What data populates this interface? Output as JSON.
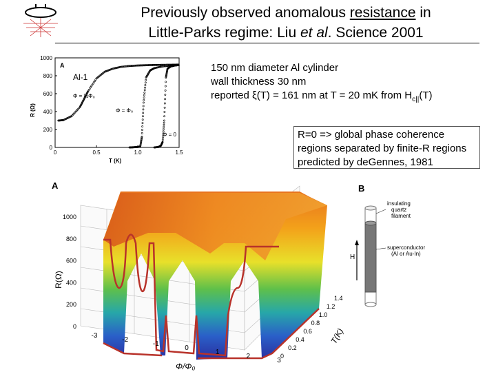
{
  "header": {
    "title_line1_pre": "Previously observed anomalous ",
    "title_line1_underlined": "resistance",
    "title_line1_post": " in",
    "title_line2_pre": "Little-Parks regime: Liu ",
    "title_line2_italic": "et al",
    "title_line2_post": ". Science 2001"
  },
  "notes": {
    "line1": "150 nm diameter Al cylinder",
    "line2": "wall thickness 30 nm",
    "line3_pre": "reported ξ(T) = 161 nm at T = 20 mK from H",
    "line3_sub": "c||",
    "line3_post": "(T)"
  },
  "callout": {
    "line1": "R=0 => global phase coherence",
    "line2": "regions separated by finite-R regions",
    "line3": "predicted by deGennes, 1981"
  },
  "chart_data": [
    {
      "type": "scatter",
      "panel_label": "A",
      "sample_label": "Al-1",
      "xlabel": "T (K)",
      "ylabel": "R (Ω)",
      "xlim": [
        0,
        1.5
      ],
      "ylim": [
        0,
        1000
      ],
      "x_ticks": [
        "0",
        "0.5",
        "1.0",
        "1.5"
      ],
      "y_ticks": [
        "0",
        "200",
        "400",
        "600",
        "800",
        "1000"
      ],
      "curve_labels": {
        "half": "Φ = ½Φ₀",
        "one": "Φ = Φ₀",
        "zero": "Φ = 0"
      },
      "series": [
        {
          "name": "Φ = ½Φ₀",
          "x": [
            0.04,
            0.1,
            0.2,
            0.3,
            0.35,
            0.4,
            0.5,
            0.6,
            0.7,
            0.8,
            0.9,
            1.0,
            1.1,
            1.2,
            1.3,
            1.4,
            1.5
          ],
          "y": [
            300,
            305,
            350,
            450,
            540,
            630,
            770,
            845,
            880,
            900,
            910,
            915,
            918,
            920,
            922,
            923,
            925
          ]
        },
        {
          "name": "Φ = Φ₀",
          "x": [
            0.9,
            0.95,
            1.0,
            1.03,
            1.05,
            1.07,
            1.1,
            1.15,
            1.2,
            1.3,
            1.4,
            1.5
          ],
          "y": [
            0,
            2,
            5,
            10,
            120,
            500,
            780,
            860,
            885,
            905,
            915,
            920
          ]
        },
        {
          "name": "Φ = 0",
          "x": [
            1.2,
            1.25,
            1.28,
            1.3,
            1.32,
            1.34,
            1.36,
            1.4,
            1.45,
            1.5
          ],
          "y": [
            0,
            5,
            20,
            60,
            300,
            780,
            880,
            905,
            915,
            920
          ]
        }
      ]
    },
    {
      "type": "area",
      "panel_label": "A",
      "xlabel": "Φ/Φ₀",
      "ylabel": "R(Ω)",
      "zlabel": "T(K)",
      "x_ticks": [
        "-3",
        "-2",
        "-1",
        "0",
        "1",
        "2",
        "3"
      ],
      "y_ticks": [
        "0",
        "200",
        "400",
        "600",
        "800",
        "1000"
      ],
      "z_ticks": [
        "0",
        "0.2",
        "0.4",
        "0.6",
        "0.8",
        "1.0",
        "1.2",
        "1.4"
      ]
    }
  ],
  "diagram": {
    "panel_label": "B",
    "label_top": [
      "insulating",
      "quartz",
      "filament"
    ],
    "label_mid": [
      "superconductor",
      "(Al or Au-In)"
    ],
    "field_label": "H"
  }
}
